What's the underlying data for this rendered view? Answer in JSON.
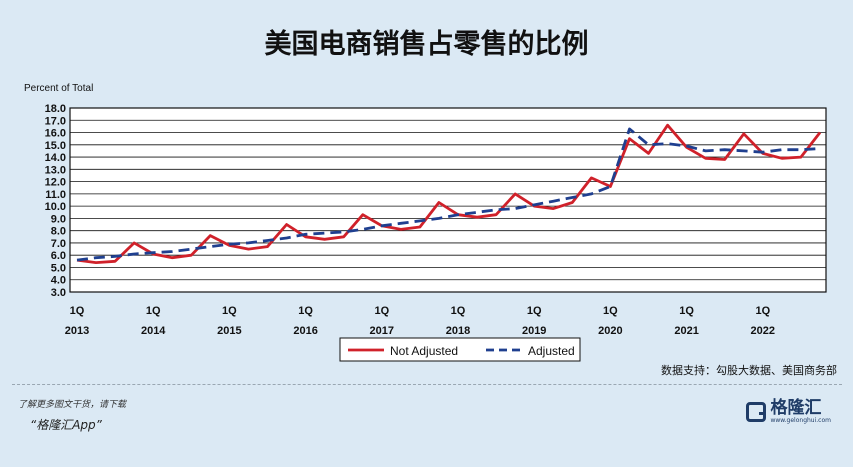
{
  "title": "美国电商销售占零售的比例",
  "source": "数据支持：勾股大数据、美国商务部",
  "promo": {
    "line1": "了解更多图文干货，请下载",
    "line2": "“格隆汇App”"
  },
  "logo": {
    "name": "格隆汇",
    "url": "www.gelonghui.com"
  },
  "colors": {
    "not_adjusted": "#d0212a",
    "adjusted": "#1f3f8f"
  },
  "chart_data": {
    "type": "line",
    "ylabel": "Percent of Total",
    "ylim": [
      3.0,
      18.0
    ],
    "ytick_step": 1.0,
    "grid": true,
    "legend_position": "bottom-center",
    "x_quarters": [
      "2013Q1",
      "2013Q2",
      "2013Q3",
      "2013Q4",
      "2014Q1",
      "2014Q2",
      "2014Q3",
      "2014Q4",
      "2015Q1",
      "2015Q2",
      "2015Q3",
      "2015Q4",
      "2016Q1",
      "2016Q2",
      "2016Q3",
      "2016Q4",
      "2017Q1",
      "2017Q2",
      "2017Q3",
      "2017Q4",
      "2018Q1",
      "2018Q2",
      "2018Q3",
      "2018Q4",
      "2019Q1",
      "2019Q2",
      "2019Q3",
      "2019Q4",
      "2020Q1",
      "2020Q2",
      "2020Q3",
      "2020Q4",
      "2021Q1",
      "2021Q2",
      "2021Q3",
      "2021Q4",
      "2022Q1",
      "2022Q2",
      "2022Q3",
      "2022Q4"
    ],
    "x_tick_labels": [
      {
        "q": "1Q",
        "year": "2013"
      },
      {
        "q": "1Q",
        "year": "2014"
      },
      {
        "q": "1Q",
        "year": "2015"
      },
      {
        "q": "1Q",
        "year": "2016"
      },
      {
        "q": "1Q",
        "year": "2017"
      },
      {
        "q": "1Q",
        "year": "2018"
      },
      {
        "q": "1Q",
        "year": "2019"
      },
      {
        "q": "1Q",
        "year": "2020"
      },
      {
        "q": "1Q",
        "year": "2021"
      },
      {
        "q": "1Q",
        "year": "2022"
      }
    ],
    "series": [
      {
        "name": "Not Adjusted",
        "values": [
          5.6,
          5.4,
          5.5,
          7.0,
          6.1,
          5.8,
          6.0,
          7.6,
          6.8,
          6.5,
          6.7,
          8.5,
          7.5,
          7.3,
          7.5,
          9.3,
          8.4,
          8.1,
          8.3,
          10.3,
          9.3,
          9.1,
          9.3,
          11.0,
          10.0,
          9.8,
          10.3,
          12.3,
          11.6,
          15.5,
          14.3,
          16.6,
          14.8,
          13.9,
          13.8,
          15.9,
          14.3,
          13.9,
          14.0,
          16.0
        ]
      },
      {
        "name": "Adjusted",
        "values": [
          5.6,
          5.8,
          5.9,
          6.1,
          6.2,
          6.3,
          6.5,
          6.7,
          6.9,
          7.0,
          7.2,
          7.4,
          7.7,
          7.8,
          7.9,
          8.1,
          8.4,
          8.6,
          8.8,
          9.0,
          9.3,
          9.5,
          9.7,
          9.8,
          10.1,
          10.4,
          10.7,
          11.0,
          11.6,
          16.3,
          15.0,
          15.1,
          14.9,
          14.5,
          14.6,
          14.5,
          14.4,
          14.6,
          14.6,
          14.7
        ]
      }
    ]
  }
}
